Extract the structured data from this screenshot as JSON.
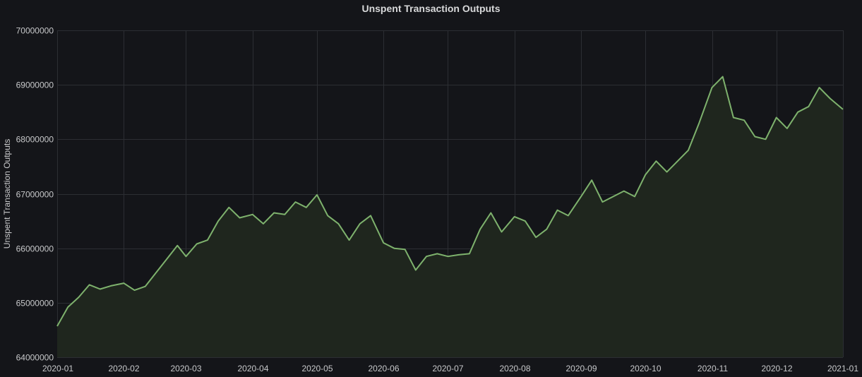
{
  "chart_data": {
    "type": "area",
    "title": "Unspent Transaction Outputs",
    "xlabel": "",
    "ylabel": "Unspent Transaction Outputs",
    "x_axis_type": "date",
    "xlim": [
      "2020-01-01",
      "2021-01-01"
    ],
    "ylim": [
      64000000,
      70000000
    ],
    "x_ticks": [
      "2020-01",
      "2020-02",
      "2020-03",
      "2020-04",
      "2020-05",
      "2020-06",
      "2020-07",
      "2020-08",
      "2020-09",
      "2020-10",
      "2020-11",
      "2020-12",
      "2021-01"
    ],
    "y_ticks": [
      "64000000",
      "65000000",
      "66000000",
      "67000000",
      "68000000",
      "69000000",
      "70000000"
    ],
    "grid": true,
    "legend": "none",
    "colors": {
      "background": "#141519",
      "grid": "#2c2e33",
      "line": "#7eb26d",
      "fill": "#1f261e",
      "text": "#c7c8ca",
      "title": "#d8d9da"
    },
    "series": [
      {
        "x": [
          "2020-01-01",
          "2020-01-06",
          "2020-01-11",
          "2020-01-16",
          "2020-01-21",
          "2020-01-26",
          "2020-02-01",
          "2020-02-06",
          "2020-02-11",
          "2020-02-16",
          "2020-02-21",
          "2020-02-26",
          "2020-03-01",
          "2020-03-06",
          "2020-03-11",
          "2020-03-16",
          "2020-03-21",
          "2020-03-26",
          "2020-04-01",
          "2020-04-06",
          "2020-04-11",
          "2020-04-16",
          "2020-04-21",
          "2020-04-26",
          "2020-05-01",
          "2020-05-06",
          "2020-05-11",
          "2020-05-16",
          "2020-05-21",
          "2020-05-26",
          "2020-06-01",
          "2020-06-06",
          "2020-06-11",
          "2020-06-16",
          "2020-06-21",
          "2020-06-26",
          "2020-07-01",
          "2020-07-06",
          "2020-07-11",
          "2020-07-16",
          "2020-07-21",
          "2020-07-26",
          "2020-08-01",
          "2020-08-06",
          "2020-08-11",
          "2020-08-16",
          "2020-08-21",
          "2020-08-26",
          "2020-09-01",
          "2020-09-06",
          "2020-09-11",
          "2020-09-16",
          "2020-09-21",
          "2020-09-26",
          "2020-10-01",
          "2020-10-06",
          "2020-10-11",
          "2020-10-16",
          "2020-10-21",
          "2020-10-26",
          "2020-11-01",
          "2020-11-06",
          "2020-11-11",
          "2020-11-16",
          "2020-11-21",
          "2020-11-26",
          "2020-12-01",
          "2020-12-06",
          "2020-12-11",
          "2020-12-16",
          "2020-12-21",
          "2020-12-26",
          "2021-01-01"
        ],
        "values": [
          64570000,
          64920000,
          65100000,
          65330000,
          65250000,
          65310000,
          65360000,
          65230000,
          65300000,
          65550000,
          65800000,
          66050000,
          65850000,
          66080000,
          66150000,
          66500000,
          66750000,
          66560000,
          66620000,
          66450000,
          66650000,
          66620000,
          66850000,
          66750000,
          66980000,
          66600000,
          66450000,
          66150000,
          66450000,
          66600000,
          66100000,
          66000000,
          65980000,
          65600000,
          65850000,
          65900000,
          65850000,
          65880000,
          65900000,
          66350000,
          66650000,
          66300000,
          66580000,
          66500000,
          66200000,
          66350000,
          66700000,
          66600000,
          66950000,
          67250000,
          66850000,
          66950000,
          67050000,
          66950000,
          67350000,
          67600000,
          67400000,
          67600000,
          67800000,
          68300000,
          68950000,
          69150000,
          68400000,
          68350000,
          68050000,
          68000000,
          68400000,
          68200000,
          68500000,
          68600000,
          68950000,
          68750000,
          68550000
        ]
      }
    ]
  }
}
